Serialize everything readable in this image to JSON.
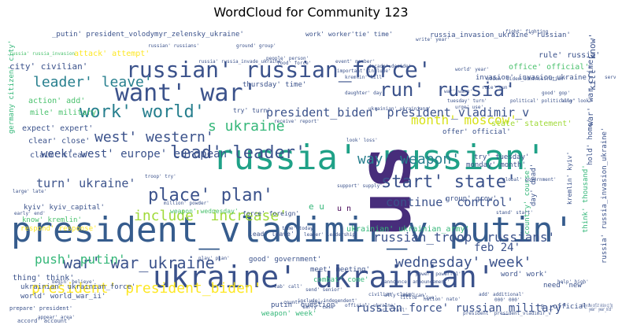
{
  "chart_data": {
    "type": "wordcloud",
    "title": "WordCloud for Community 123",
    "palette": [
      "#440154",
      "#46337e",
      "#365c8d",
      "#277f8e",
      "#1fa187",
      "#4ac16d",
      "#a0da39",
      "#fde725"
    ],
    "words": [
      {
        "text": "president_vladimir_v putin'",
        "weight": 1.0,
        "color": "#365c8d"
      },
      {
        "text": "ukraine' ukrainian'",
        "weight": 0.92,
        "color": "#3b528b"
      },
      {
        "text": "russia' russian'",
        "weight": 0.86,
        "color": "#1fa187"
      },
      {
        "text": "us",
        "weight": 0.98,
        "color": "#472d7b",
        "rotate": true
      },
      {
        "text": "russian' russian_force'",
        "weight": 0.62,
        "color": "#3b528b"
      },
      {
        "text": "want' war'",
        "weight": 0.62,
        "color": "#3b528b"
      },
      {
        "text": "run' russia'",
        "weight": 0.5,
        "color": "#3b528b"
      },
      {
        "text": "work' world'",
        "weight": 0.5,
        "color": "#277f8e"
      },
      {
        "text": "lead' leader'",
        "weight": 0.46,
        "color": "#3b528b"
      },
      {
        "text": "war' war_ukraine'",
        "weight": 0.46,
        "color": "#3b528b"
      },
      {
        "text": "president' president_biden'",
        "weight": 0.42,
        "color": "#fde725"
      },
      {
        "text": "start' state'",
        "weight": 0.44,
        "color": "#3b528b"
      },
      {
        "text": "place' plan'",
        "weight": 0.42,
        "color": "#3b528b"
      },
      {
        "text": "wednesday' week'",
        "weight": 0.42,
        "color": "#3b528b"
      },
      {
        "text": "s ukraine",
        "weight": 0.38,
        "color": "#35b779"
      },
      {
        "text": "west' western'",
        "weight": 0.4,
        "color": "#3b528b"
      },
      {
        "text": "way' weapon'",
        "weight": 0.38,
        "color": "#277f8e"
      },
      {
        "text": "month' moscow'",
        "weight": 0.36,
        "color": "#d8e219"
      },
      {
        "text": "include' increase'",
        "weight": 0.36,
        "color": "#a0da39"
      },
      {
        "text": "russian_force' russian_military'",
        "weight": 0.28,
        "color": "#3b528b"
      },
      {
        "text": "russian_troop' russians'",
        "weight": 0.3,
        "color": "#3b528b"
      },
      {
        "text": "continue' control'",
        "weight": 0.3,
        "color": "#3b528b"
      },
      {
        "text": "push' putin'",
        "weight": 0.28,
        "color": "#35b779"
      },
      {
        "text": "feb 24'",
        "weight": 0.26,
        "color": "#3b528b"
      },
      {
        "text": "president_biden' president_vladimir_v",
        "weight": 0.24,
        "color": "#3b528b"
      },
      {
        "text": "leader' leave'",
        "weight": 0.28,
        "color": "#277f8e"
      },
      {
        "text": "week' west' europe' european'",
        "weight": 0.25,
        "color": "#3b528b"
      },
      {
        "text": "turn' ukraine'",
        "weight": 0.24,
        "color": "#3b528b"
      },
      {
        "text": "u n",
        "weight": 0.22,
        "color": "#440154"
      },
      {
        "text": "e u",
        "weight": 0.2,
        "color": "#35b779"
      },
      {
        "text": "russia_invasion_ukraine' russian'",
        "weight": 0.14,
        "color": "#3b528b"
      },
      {
        "text": "_putin' president_volodymyr_zelensky_ukraine'",
        "weight": 0.14,
        "color": "#3b528b"
      },
      {
        "text": "work' worker'tie' time'",
        "weight": 0.14,
        "color": "#3b528b"
      },
      {
        "text": "attack' attempt'",
        "weight": 0.14,
        "color": "#fde725"
      },
      {
        "text": "rule' russia'",
        "weight": 0.14,
        "color": "#3b528b"
      },
      {
        "text": "office' official'",
        "weight": 0.14,
        "color": "#4ac16d"
      },
      {
        "text": "invasion' invasion_ukraine'",
        "weight": 0.13,
        "color": "#3b528b"
      },
      {
        "text": "city' civilian'",
        "weight": 0.15,
        "color": "#3b528b"
      },
      {
        "text": "action' add'",
        "weight": 0.14,
        "color": "#4ac16d"
      },
      {
        "text": "thursday' time'",
        "weight": 0.14,
        "color": "#3b528b"
      },
      {
        "text": "mile' military'",
        "weight": 0.14,
        "color": "#4ac16d"
      },
      {
        "text": "try' turn'",
        "weight": 0.12,
        "color": "#3b528b"
      },
      {
        "text": "expect' expert'",
        "weight": 0.14,
        "color": "#3b528b"
      },
      {
        "text": "clear' close'",
        "weight": 0.13,
        "color": "#3b528b"
      },
      {
        "text": "claim' clear'",
        "weight": 0.14,
        "color": "#3b528b"
      },
      {
        "text": "state' statement'",
        "weight": 0.14,
        "color": "#a0da39"
      },
      {
        "text": "offer' official'",
        "weight": 0.13,
        "color": "#3b528b"
      },
      {
        "text": "kyiv' kyiv_capital'",
        "weight": 0.12,
        "color": "#3b528b"
      },
      {
        "text": "know' kremlin'",
        "weight": 0.12,
        "color": "#4ac16d"
      },
      {
        "text": "respond' response'",
        "weight": 0.12,
        "color": "#fde725"
      },
      {
        "text": "weapon' wednesday'",
        "weight": 0.1,
        "color": "#4ac16d"
      },
      {
        "text": "force' foreign'",
        "weight": 0.1,
        "color": "#3b528b"
      },
      {
        "text": "lead' leave'",
        "weight": 0.1,
        "color": "#3b528b"
      },
      {
        "text": "thing' think'",
        "weight": 0.12,
        "color": "#3b528b"
      },
      {
        "text": "good' government'",
        "weight": 0.12,
        "color": "#3b528b"
      },
      {
        "text": "meet' meeting'",
        "weight": 0.12,
        "color": "#3b528b"
      },
      {
        "text": "combat' come'",
        "weight": 0.12,
        "color": "#35b779"
      },
      {
        "text": "ukrainian' ukrainian_army'",
        "weight": 0.12,
        "color": "#35b779"
      },
      {
        "text": "ukrainian' ukrainian_force'",
        "weight": 0.12,
        "color": "#3b528b"
      },
      {
        "text": "world' world_war_ii'",
        "weight": 0.11,
        "color": "#3b528b"
      },
      {
        "text": "putin' question'",
        "weight": 0.1,
        "color": "#3b528b"
      },
      {
        "text": "weapon' week'",
        "weight": 0.1,
        "color": "#35b779"
      },
      {
        "text": "word' work'",
        "weight": 0.12,
        "color": "#3b528b"
      },
      {
        "text": "need' new'",
        "weight": 0.12,
        "color": "#3b528b"
      },
      {
        "text": "s _official'",
        "weight": 0.12,
        "color": "#3b528b"
      },
      {
        "text": "try' tuesday'",
        "weight": 0.11,
        "color": "#3b528b"
      },
      {
        "text": "monday' month'",
        "weight": 0.1,
        "color": "#3b528b"
      },
      {
        "text": "group' grow'",
        "weight": 0.1,
        "color": "#3b528b"
      },
      {
        "text": "war' war_crime'",
        "weight": 0.1,
        "color": "#3b528b"
      },
      {
        "text": "kill' know'",
        "weight": 0.12,
        "color": "#3b528b"
      },
      {
        "text": "day' dead'",
        "weight": 0.12,
        "color": "#3b528b"
      },
      {
        "text": "country' course'",
        "weight": 0.1,
        "color": "#35b779"
      },
      {
        "text": "think' thousand'",
        "weight": 0.1,
        "color": "#35b779"
      },
      {
        "text": "hold' home'",
        "weight": 0.1,
        "color": "#3b528b"
      },
      {
        "text": "kremlin' kyiv'",
        "weight": 0.1,
        "color": "#3b528b"
      },
      {
        "text": "russia' russia_invasion_ukraine'",
        "weight": 0.09,
        "color": "#3b528b"
      },
      {
        "text": "germany citizen' city'",
        "weight": 0.09,
        "color": "#35b779"
      },
      {
        "text": "russia' russia_invasion",
        "weight": 0.09,
        "color": "#4ac16d"
      },
      {
        "text": "fight' fighting",
        "weight": 0.06,
        "color": "#3b528b"
      },
      {
        "text": "russia' russia_invade_ukraine'",
        "weight": 0.06,
        "color": "#3b528b"
      },
      {
        "text": "ukrainian' ukrainians'",
        "weight": 0.08,
        "color": "#3b528b"
      },
      {
        "text": "world' year'",
        "weight": 0.07,
        "color": "#3b528b"
      },
      {
        "text": "ukraine_cause_conflict ukraine_cut_fog",
        "weight": 0.05,
        "color": "#3b528b"
      },
      {
        "text": "president' president_vladimir_v",
        "weight": 0.08,
        "color": "#3b528b"
      },
      {
        "text": "include' independent'",
        "weight": 0.06,
        "color": "#3b528b"
      },
      {
        "text": "leader' leadership'",
        "weight": 0.06,
        "color": "#3b528b"
      },
      {
        "text": "time' today'",
        "weight": 0.05,
        "color": "#3b528b"
      },
      {
        "text": "country' cover'",
        "weight": 0.05,
        "color": "#3b528b"
      },
      {
        "text": "begin' believe'",
        "weight": 0.05,
        "color": "#3b528b"
      },
      {
        "text": "appear' area'",
        "weight": 0.05,
        "color": "#3b528b"
      },
      {
        "text": "civilian' claim'",
        "weight": 0.05,
        "color": "#3b528b"
      },
      {
        "text": "000' 000'",
        "weight": 0.07,
        "color": "#3b528b"
      },
      {
        "text": "nation' nato'",
        "weight": 0.05,
        "color": "#3b528b"
      },
      {
        "text": "good' gop'",
        "weight": 0.05,
        "color": "#3b528b"
      },
      {
        "text": "year' year_old'",
        "weight": 0.05,
        "color": "#3b528b"
      },
      {
        "text": "official' ukraine'",
        "weight": 0.05,
        "color": "#3b528b"
      },
      {
        "text": "look' loss'",
        "weight": 0.05,
        "color": "#3b528b"
      },
      {
        "text": "fact' fall'",
        "weight": 0.05,
        "color": "#3b528b"
      },
      {
        "text": "large' late'",
        "weight": 0.05,
        "color": "#3b528b"
      },
      {
        "text": "early' end'",
        "weight": 0.05,
        "color": "#3b528b"
      },
      {
        "text": "cab' call'",
        "weight": 0.05,
        "color": "#3b528b"
      },
      {
        "text": "troop' try'",
        "weight": 0.05,
        "color": "#3b528b"
      },
      {
        "text": "play' plan'",
        "weight": 0.05,
        "color": "#3b528b"
      },
      {
        "text": "ally' american'",
        "weight": 0.05,
        "color": "#3b528b"
      },
      {
        "text": "support' supply'",
        "weight": 0.05,
        "color": "#3b528b"
      },
      {
        "text": "stand' start'",
        "weight": 0.05,
        "color": "#3b528b"
      },
      {
        "text": "help' high'",
        "weight": 0.05,
        "color": "#3b528b"
      },
      {
        "text": "long' look'",
        "weight": 0.05,
        "color": "#3b528b"
      },
      {
        "text": "receive' report'",
        "weight": 0.05,
        "color": "#3b528b"
      },
      {
        "text": "people' person'",
        "weight": 0.05,
        "color": "#3b528b"
      },
      {
        "text": "biden' biden_administration'",
        "weight": 0.05,
        "color": "#3b528b"
      },
      {
        "text": "announce' announcement'",
        "weight": 0.05,
        "color": "#3b528b"
      },
      {
        "text": "carry' case'",
        "weight": 0.05,
        "color": "#3b528b"
      },
      {
        "text": "food' force'",
        "weight": 0.05,
        "color": "#3b528b"
      },
      {
        "text": "important' include'",
        "weight": 0.05,
        "color": "#3b528b"
      },
      {
        "text": "global' government'",
        "weight": 0.05,
        "color": "#3b528b"
      },
      {
        "text": "power' powerful'",
        "weight": 0.05,
        "color": "#3b528b"
      },
      {
        "text": "add' additional'",
        "weight": 0.05,
        "color": "#3b528b"
      },
      {
        "text": "write' year'",
        "weight": 0.05,
        "color": "#3b528b"
      },
      {
        "text": "ground' group'",
        "weight": 0.05,
        "color": "#3b528b"
      },
      {
        "text": "service' set'",
        "weight": 0.05,
        "color": "#3b528b"
      },
      {
        "text": "decade' decide'",
        "weight": 0.05,
        "color": "#3b528b"
      },
      {
        "text": "political' politically'",
        "weight": 0.05,
        "color": "#3b528b"
      },
      {
        "text": "urge' use'",
        "weight": 0.05,
        "color": "#3b528b"
      },
      {
        "text": "event' member'",
        "weight": 0.05,
        "color": "#3b528b"
      },
      {
        "text": "kremlin' kill'",
        "weight": 0.05,
        "color": "#3b528b"
      },
      {
        "text": "russian' russians'",
        "weight": 0.05,
        "color": "#3b528b"
      },
      {
        "text": "tuesday' turn'",
        "weight": 0.05,
        "color": "#3b528b"
      },
      {
        "text": "daughter' day'",
        "weight": 0.05,
        "color": "#3b528b"
      },
      {
        "text": "million' powder'",
        "weight": 0.05,
        "color": "#3b528b"
      },
      {
        "text": "send' senior'",
        "weight": 0.05,
        "color": "#3b528b"
      },
      {
        "text": "accord' account'",
        "weight": 0.05,
        "color": "#3b528b"
      },
      {
        "text": "war' warn'",
        "weight": 0.05,
        "color": "#3b528b"
      },
      {
        "text": "prepare' president'",
        "weight": 0.05,
        "color": "#3b528b"
      },
      {
        "text": "little' live'",
        "weight": 0.05,
        "color": "#3b528b"
      },
      {
        "text": "rule' run'",
        "weight": 0.05,
        "color": "#3b528b"
      }
    ]
  }
}
